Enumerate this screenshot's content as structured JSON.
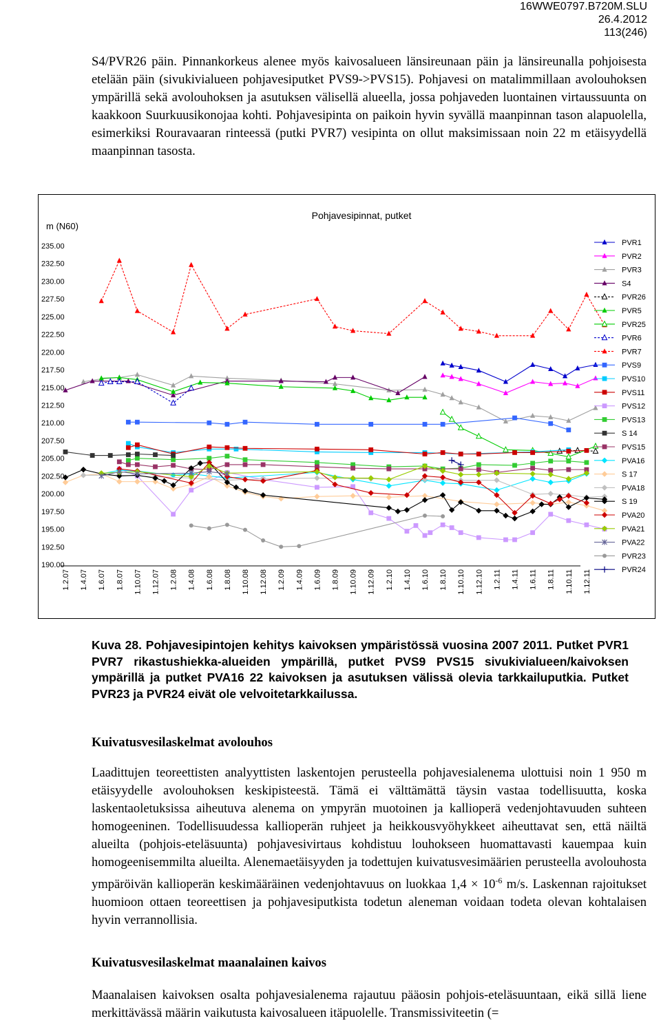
{
  "header": {
    "doc_id": "16WWE0797.B720M.SLU",
    "date": "26.4.2012",
    "page": "113(246)"
  },
  "paragraph1": "S4/PVR26 päin. Pinnankorkeus alenee myös kaivosalueen länsireunaan päin ja länsireunalla pohjoisesta etelään päin (sivukivialueen pohjavesiputket PVS9->PVS15). Pohjavesi on matalimmillaan avolouhoksen ympärillä sekä avolouhoksen ja asutuksen välisellä alueella, jossa pohjaveden luontainen virtaussuunta on kaakkoon Suurkuusikonojaa kohti. Pohjavesipinta on paikoin hyvin syvällä maanpinnan tason alapuolella, esimerkiksi Rouravaaran rinteessä (putki PVR7) vesipinta on ollut maksimissaan noin 22 m etäisyydellä maanpinnan tasosta.",
  "caption": "Kuva 28. Pohjavesipintojen kehitys kaivoksen ympäristössä vuosina 2007 2011. Putket PVR1 PVR7 rikastushiekka-alueiden ympärillä, putket PVS9 PVS15 sivukivialueen/kaivoksen ympärillä ja putket PVA16 22 kaivoksen ja asutuksen välissä olevia tarkkailuputkia. Putket PVR23 ja PVR24 eivät ole velvoitetarkkailussa.",
  "heading1": "Kuivatusvesilaskelmat avolouhos",
  "paragraph2_a": "Laadittujen teoreettisten analyyttisten laskentojen perusteella pohjavesialenema ulottuisi noin 1 950 m etäisyydelle avolouhoksen keskipisteestä. Tämä ei välttämättä täysin vastaa todellisuutta, koska laskentaoletuksissa aiheutuva alenema on ympyrän muotoinen ja kallioperä vedenjohtavuuden suhteen homogeeninen. Todellisuudessa kallioperän ruhjeet ja heikkousvyöhykkeet aiheuttavat sen, että näiltä alueilta (pohjois-eteläsuunta) pohjavesivirtaus kohdistuu louhokseen huomattavasti kauempaa kuin homogeenisemmilta alueilta. Alenemaetäisyyden ja todettujen kuivatusvesimäärien perusteella avolouhosta ympäröivän kallioperän keskimääräinen vedenjohtavuus on luokkaa 1,4",
  "paragraph2_times": "×",
  "paragraph2_base": "10",
  "paragraph2_exp": "-6",
  "paragraph2_b": "m/s. Laskennan rajoitukset huomioon ottaen teoreettisen ja pohjavesiputkista todetun aleneman voidaan todeta olevan kohtalaisen hyvin verrannollisia.",
  "heading2": "Kuivatusvesilaskelmat maanalainen kaivos",
  "paragraph3": "Maanalaisen kaivoksen osalta pohjavesialenema rajautuu pääosin pohjois-eteläsuuntaan, eikä sillä liene merkittävässä määrin vaikutusta kaivosalueen itäpuolelle. Transmissiviteetin (=",
  "chart_data": {
    "type": "line",
    "title": "Pohjavesipinnat, putket",
    "ylabel": "m (N60)",
    "ylim": [
      190,
      235
    ],
    "y_ticks": [
      "235.00",
      "232.50",
      "230.00",
      "227.50",
      "225.00",
      "222.50",
      "220.00",
      "217.50",
      "215.00",
      "212.50",
      "210.00",
      "207.50",
      "205.00",
      "202.50",
      "200.00",
      "197.50",
      "195.00",
      "192.50",
      "190.00"
    ],
    "x_ticks": [
      "1.2.07",
      "1.4.07",
      "1.6.07",
      "1.8.07",
      "1.10.07",
      "1.12.07",
      "1.2.08",
      "1.4.08",
      "1.6.08",
      "1.8.08",
      "1.10.08",
      "1.12.08",
      "1.2.09",
      "1.4.09",
      "1.6.09",
      "1.8.09",
      "1.10.09",
      "1.12.09",
      "1.2.10",
      "1.4.10",
      "1.6.10",
      "1.8.10",
      "1.10.10",
      "1.12.10",
      "1.2.11",
      "1.4.11",
      "1.6.11",
      "1.8.11",
      "1.10.11",
      "1.12.11"
    ],
    "grid": false,
    "legend_position": "right",
    "series": [
      {
        "name": "PVR1",
        "color": "#0000CC",
        "marker": "triangle",
        "x": [
          21,
          21.5,
          22,
          23,
          24.5,
          26,
          27,
          27.8,
          28.5,
          29.5
        ],
        "y": [
          218.4,
          218.1,
          217.9,
          217.4,
          215.8,
          218.2,
          217.6,
          216.6,
          217.7,
          218.2
        ]
      },
      {
        "name": "PVR2",
        "color": "#FF00FF",
        "marker": "triangle",
        "x": [
          21,
          21.5,
          22,
          23,
          24.5,
          26,
          27,
          27.8,
          28.5,
          29.5
        ],
        "y": [
          216.7,
          216.5,
          216.2,
          215.5,
          214.2,
          215.8,
          215.5,
          215.6,
          215.2,
          216.3
        ]
      },
      {
        "name": "PVR3",
        "color": "#A0A0A0",
        "marker": "triangle",
        "x": [
          1,
          2,
          3,
          4,
          6,
          7,
          9,
          12,
          15,
          18,
          20,
          21,
          21.5,
          22,
          23,
          24.5,
          26,
          27,
          28,
          29.5
        ],
        "y": [
          215.8,
          216.2,
          216.4,
          216.8,
          215.3,
          216.6,
          216.3,
          216,
          215.5,
          214.6,
          214.7,
          214,
          213.5,
          212.9,
          212.2,
          210.2,
          211,
          210.8,
          210.3,
          212.1
        ]
      },
      {
        "name": "S4",
        "color": "#660066",
        "marker": "triangle",
        "x": [
          0,
          1.5,
          3.5,
          6,
          9,
          12,
          14.5,
          15,
          16,
          18.5,
          20
        ],
        "y": [
          214.6,
          215.9,
          215.9,
          213.9,
          215.9,
          215.9,
          215.8,
          216.4,
          216.4,
          214.2,
          216.5
        ]
      },
      {
        "name": "PVR26",
        "color": "#000000",
        "marker": "triangle-open",
        "dash": true,
        "x": [
          27.5,
          28.5,
          29.5
        ],
        "y": [
          206,
          206.1,
          206
        ]
      },
      {
        "name": "PVR5",
        "color": "#00CC00",
        "marker": "triangle",
        "x": [
          2,
          3,
          4,
          6,
          7.5,
          9,
          12,
          15,
          16,
          17,
          18,
          19,
          20
        ],
        "y": [
          216.3,
          216.4,
          216.1,
          214.4,
          215.7,
          215.6,
          215.1,
          214.9,
          214.5,
          213.5,
          213.2,
          213.6,
          213.6
        ]
      },
      {
        "name": "PVR25",
        "color": "#00CC00",
        "marker": "triangle-open",
        "x": [
          21,
          21.5,
          22,
          23,
          24.5,
          26,
          27,
          28,
          29.5
        ],
        "y": [
          211.5,
          210.5,
          209.3,
          208.1,
          206.2,
          206.1,
          205.7,
          205.2,
          206.7
        ]
      },
      {
        "name": "PVR6",
        "color": "#0000CC",
        "marker": "triangle-open",
        "dash": true,
        "x": [
          2,
          2.5,
          3,
          4,
          6,
          7
        ],
        "y": [
          215.6,
          215.8,
          215.8,
          215.8,
          212.8,
          214.9
        ]
      },
      {
        "name": "PVR7",
        "color": "#FF0000",
        "marker": "triangle",
        "dash": true,
        "x": [
          2,
          3,
          4,
          6,
          7,
          9,
          10,
          14,
          15,
          16,
          18,
          20,
          21,
          22,
          23,
          24,
          26,
          27,
          28,
          29,
          30
        ],
        "y": [
          227.2,
          232.9,
          225.8,
          222.8,
          232.3,
          223.3,
          225.3,
          227.5,
          223.6,
          223,
          222.6,
          227.2,
          225.6,
          223.3,
          222.9,
          222.3,
          222.3,
          225.8,
          223.2,
          228.1,
          223.8
        ]
      },
      {
        "name": "PVS9",
        "color": "#3366FF",
        "marker": "square",
        "x": [
          3.5,
          4,
          8,
          9,
          10,
          14,
          17,
          20,
          21,
          25,
          27,
          28
        ],
        "y": [
          210.1,
          210.1,
          210,
          209.8,
          210.1,
          209.8,
          209.8,
          209.8,
          209.8,
          210.7,
          209.9,
          209
        ]
      },
      {
        "name": "PVS10",
        "color": "#00CCFF",
        "marker": "square",
        "x": [
          3.5,
          4,
          6,
          8,
          9.5,
          14,
          17,
          20,
          22,
          26,
          28
        ],
        "y": [
          207.1,
          206.6,
          205.8,
          206.3,
          206.3,
          205.9,
          205.8,
          205.8,
          205.6,
          205.9,
          206.2
        ]
      },
      {
        "name": "PVS11",
        "color": "#CC0000",
        "marker": "square",
        "x": [
          3.5,
          4,
          6,
          8,
          9,
          10,
          14,
          17,
          20,
          21,
          22,
          23,
          25,
          26,
          28,
          29
        ],
        "y": [
          206.5,
          206.9,
          205.6,
          206.6,
          206.5,
          206.4,
          206.3,
          206.2,
          205.6,
          205.8,
          205.6,
          205.6,
          205.8,
          205.8,
          206,
          206.1
        ]
      },
      {
        "name": "PVS12",
        "color": "#CC99FF",
        "marker": "square",
        "x": [
          3,
          4,
          6,
          7,
          9,
          11,
          14,
          16,
          17,
          18,
          19,
          19.5,
          20,
          20.3,
          21,
          21.5,
          22,
          23,
          24.5,
          25,
          26,
          27,
          28,
          29,
          30
        ],
        "y": [
          203.5,
          202.5,
          197.1,
          200.5,
          203,
          202,
          200.9,
          201,
          197.3,
          196.5,
          194.7,
          195.5,
          194.1,
          194.5,
          195.6,
          195.2,
          194.5,
          193.8,
          193.5,
          193.5,
          194.5,
          197.1,
          196.2,
          195.6,
          195
        ]
      },
      {
        "name": "PVS13",
        "color": "#33CC33",
        "marker": "square",
        "x": [
          3.5,
          4,
          6,
          8,
          9,
          10,
          14,
          16,
          18,
          20,
          21,
          22,
          23,
          25,
          26,
          27,
          28,
          29
        ],
        "y": [
          204.7,
          205,
          204.8,
          205,
          205.3,
          204.8,
          204.4,
          204.1,
          203.8,
          203.9,
          203.5,
          203.6,
          204.1,
          204,
          204.3,
          204.6,
          204.6,
          204.4
        ]
      },
      {
        "name": "S 14",
        "color": "#333333",
        "marker": "square",
        "x": [
          0,
          1.5,
          2.5,
          3.5,
          4,
          5,
          6
        ],
        "y": [
          205.9,
          205.4,
          205.4,
          205.5,
          205.6,
          205.5,
          205.4
        ]
      },
      {
        "name": "PVS15",
        "color": "#993366",
        "marker": "square",
        "x": [
          3,
          3.5,
          4,
          5,
          6,
          7,
          8,
          9,
          10,
          11,
          14,
          16,
          18,
          20,
          22,
          23,
          24,
          26,
          27,
          28,
          29
        ],
        "y": [
          204.5,
          204.1,
          204.1,
          203.8,
          204,
          203.5,
          203.4,
          204.1,
          204.1,
          204.1,
          203.8,
          203.6,
          203.5,
          203.5,
          203.5,
          203.4,
          203,
          203.6,
          203.3,
          203.4,
          203.4
        ]
      },
      {
        "name": "PVA16",
        "color": "#00E5FF",
        "marker": "diamond",
        "x": [
          2,
          3,
          4,
          6,
          7,
          9,
          14,
          16,
          18,
          20,
          21,
          22,
          24,
          26,
          27,
          28,
          29
        ],
        "y": [
          202.8,
          203.3,
          203.2,
          202.6,
          202.8,
          202.2,
          203,
          202,
          201.1,
          201.9,
          201.5,
          201.4,
          200.5,
          202.1,
          201.6,
          201.8,
          202.8
        ]
      },
      {
        "name": "S 17",
        "color": "#FFCC99",
        "marker": "diamond",
        "x": [
          0,
          1,
          2,
          3,
          4,
          5,
          6,
          7,
          8,
          9,
          10,
          11,
          12,
          14,
          16,
          18,
          20,
          22,
          24,
          26,
          27,
          28,
          29,
          30
        ],
        "y": [
          201.6,
          202.6,
          202.8,
          201.7,
          201.7,
          201.7,
          200.7,
          201.3,
          202.4,
          201.1,
          200.2,
          199.6,
          199.3,
          199.6,
          199.7,
          199.5,
          199.7,
          198.9,
          198.5,
          198.7,
          198.5,
          198.8,
          198.3,
          197.6
        ]
      },
      {
        "name": "PVA18",
        "color": "#C0C0C0",
        "marker": "diamond",
        "x": [
          1,
          3,
          5,
          7,
          9,
          11,
          14,
          17,
          20,
          22,
          24,
          26,
          27,
          28,
          29,
          30
        ],
        "y": [
          202.6,
          202.6,
          202.4,
          202.2,
          201.9,
          202.1,
          202.2,
          202.1,
          202,
          201.9,
          201.9,
          199.9,
          200,
          199.8,
          199.5,
          199.6
        ]
      },
      {
        "name": "S 19",
        "color": "#000000",
        "marker": "diamond",
        "x": [
          0,
          1,
          2,
          3,
          4,
          5,
          5.5,
          6,
          7,
          7.5,
          8,
          9,
          9.5,
          10,
          11,
          18,
          18.5,
          19,
          20,
          21,
          21.5,
          22,
          23,
          24,
          24.5,
          25,
          26,
          26.5,
          27,
          27.5,
          28,
          29,
          30
        ],
        "y": [
          202.3,
          203.4,
          202.8,
          202.5,
          202.6,
          202.2,
          201.8,
          201.2,
          203.6,
          204.3,
          204.4,
          201.6,
          200.9,
          200.4,
          199.8,
          198,
          197.5,
          197.7,
          199.1,
          199.8,
          197.7,
          198.8,
          197.6,
          197.6,
          196.9,
          196.5,
          197.5,
          198.5,
          198.5,
          199.5,
          198.1,
          199.4,
          199.2
        ]
      },
      {
        "name": "PVA20",
        "color": "#CC0000",
        "marker": "diamond",
        "x": [
          3,
          4,
          7,
          8,
          9,
          10,
          11,
          14,
          15,
          17,
          19,
          20,
          21,
          22,
          23,
          24,
          25,
          26,
          27,
          27.5,
          28,
          29
        ],
        "y": [
          203.5,
          203.2,
          201.5,
          204.4,
          202.4,
          202,
          201.8,
          203.3,
          201.3,
          200.1,
          199.8,
          202.5,
          202.3,
          201.6,
          201.6,
          199.8,
          197.3,
          199.7,
          198.6,
          199.2,
          199.7,
          198.7
        ]
      },
      {
        "name": "PVA21",
        "color": "#99CC00",
        "marker": "diamond",
        "x": [
          2,
          3,
          4,
          7,
          8,
          9,
          14,
          15,
          16,
          17,
          18,
          20,
          21,
          22,
          23,
          24,
          26,
          27,
          28,
          29
        ],
        "y": [
          202.9,
          203,
          203.1,
          202.4,
          203.9,
          202.9,
          203.1,
          202.3,
          202.2,
          202.2,
          202,
          203.9,
          203.2,
          202.7,
          202.7,
          202.9,
          202.8,
          202.7,
          202.1,
          202.9
        ]
      },
      {
        "name": "PVA22",
        "color": "#666699",
        "marker": "star",
        "x": [
          2,
          3,
          4,
          7,
          8,
          9
        ],
        "y": [
          202.5,
          203.1,
          202.8,
          202.9,
          203.1,
          202.8
        ]
      },
      {
        "name": "PVR23",
        "color": "#999999",
        "marker": "circle",
        "x": [
          7,
          8,
          9,
          10,
          11,
          12,
          13,
          20,
          21
        ],
        "y": [
          195.5,
          195.1,
          195.6,
          194.9,
          193.4,
          192.5,
          192.6,
          196.9,
          196.8
        ]
      },
      {
        "name": "PVR24",
        "color": "#000080",
        "marker": "plus",
        "x": [
          21.5,
          22
        ],
        "y": [
          204.7,
          204.1
        ]
      }
    ]
  }
}
